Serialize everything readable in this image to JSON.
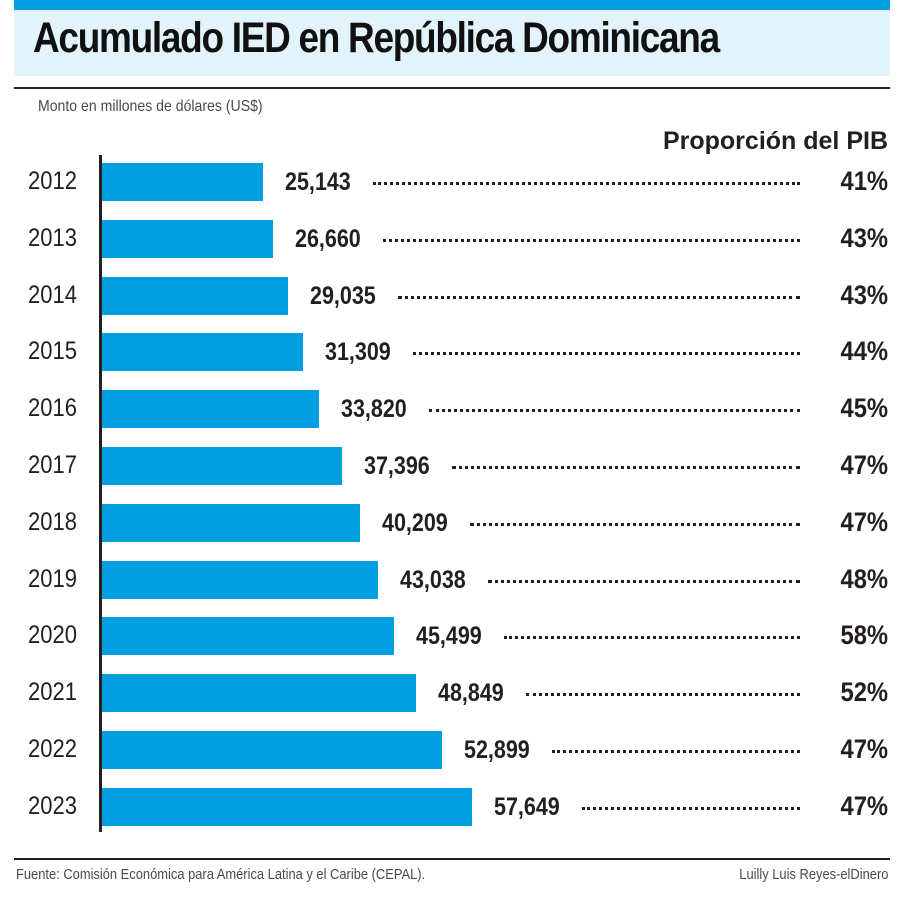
{
  "colors": {
    "bar": "#009edf",
    "title_bg": "#e2f3fb",
    "accent": "#009edf",
    "text": "#231f20"
  },
  "chart_data": {
    "type": "bar",
    "orientation": "horizontal",
    "title": "Acumulado IED en República Dominicana",
    "subtitle": "Monto en millones de dólares (US$)",
    "xlabel": "",
    "ylabel": "",
    "categories": [
      "2012",
      "2013",
      "2014",
      "2015",
      "2016",
      "2017",
      "2018",
      "2019",
      "2020",
      "2021",
      "2022",
      "2023"
    ],
    "series": [
      {
        "name": "Monto en millones de dólares (US$)",
        "values": [
          25143,
          26660,
          29035,
          31309,
          33820,
          37396,
          40209,
          43038,
          45499,
          48849,
          52899,
          57649
        ]
      },
      {
        "name": "Proporción del PIB",
        "values": [
          41,
          43,
          43,
          44,
          45,
          47,
          47,
          48,
          58,
          52,
          47,
          47
        ],
        "unit": "%"
      }
    ],
    "value_labels": [
      "25,143",
      "26,660",
      "29,035",
      "31,309",
      "33,820",
      "37,396",
      "40,209",
      "43,038",
      "45,499",
      "48,849",
      "52,899",
      "57,649"
    ],
    "pib_labels": [
      "41%",
      "43%",
      "43%",
      "44%",
      "45%",
      "47%",
      "47%",
      "48%",
      "58%",
      "52%",
      "47%",
      "47%"
    ],
    "pib_header": "Proporción del PIB",
    "xlim": [
      0,
      57649
    ],
    "grid": false,
    "legend": "none"
  },
  "footer": {
    "source": "Fuente: Comisión Económica para América Latina y el Caribe (CEPAL).",
    "credit": "Luilly Luis Reyes-elDinero"
  }
}
